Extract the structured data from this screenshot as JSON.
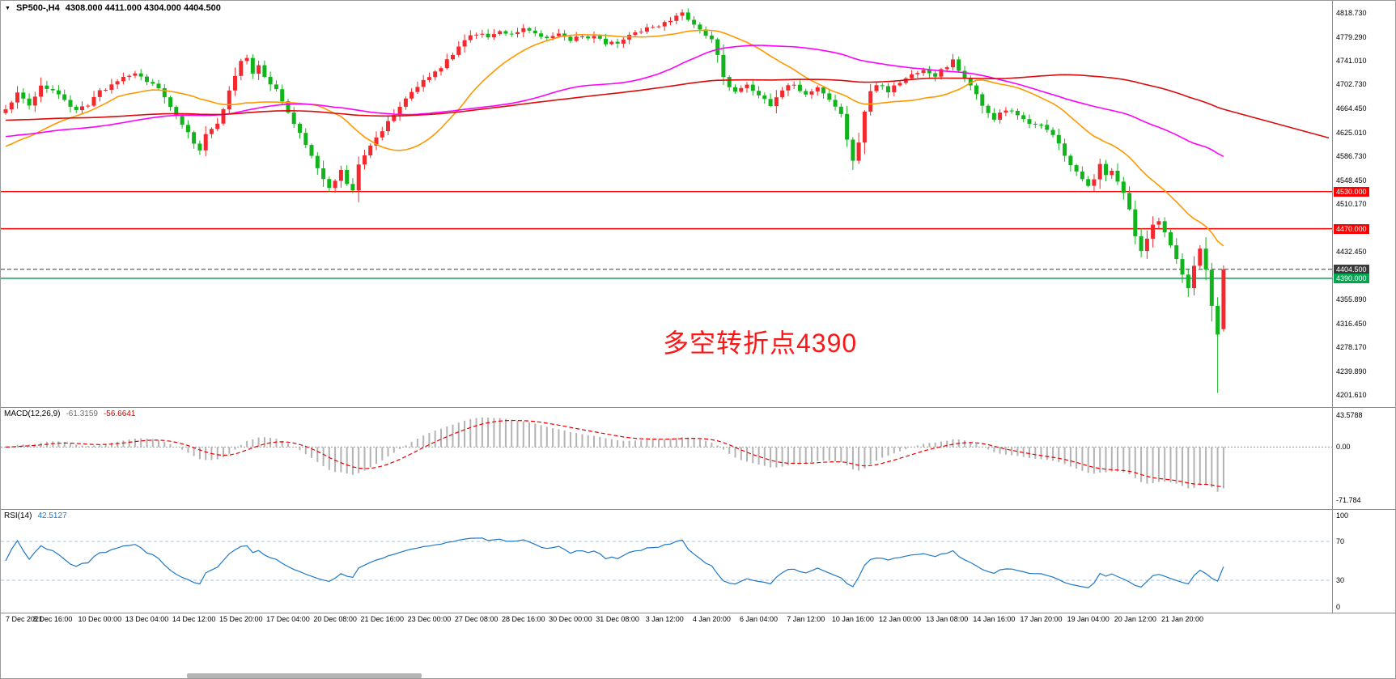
{
  "header": {
    "marker": "▼",
    "symbol": "SP500-,H4",
    "ohlc": "4308.000 4411.000 4304.000 4404.500"
  },
  "annotation": {
    "text": "多空转折点4390",
    "color": "#fb1717"
  },
  "chart_data": {
    "type": "candlestick",
    "symbol": "SP500-",
    "timeframe": "H4",
    "title": "SP500-,H4",
    "current_bar": {
      "open": 4308.0,
      "high": 4411.0,
      "low": 4304.0,
      "close": 4404.5
    },
    "ylim": [
      4190,
      4830
    ],
    "bars_total": 208,
    "bars_per_label": 8,
    "up_color": "#f5282d",
    "down_color": "#12b41c",
    "price_axis_ticks": [
      "4818.730",
      "4779.290",
      "4741.010",
      "4702.730",
      "4664.450",
      "4625.010",
      "4586.730",
      "4548.450",
      "4510.170",
      "4432.450",
      "4355.890",
      "4316.450",
      "4278.170",
      "4239.890",
      "4201.610"
    ],
    "x_labels": [
      "7 Dec 2021",
      "8 Dec 16:00",
      "10 Dec 00:00",
      "13 Dec 04:00",
      "14 Dec 12:00",
      "15 Dec 20:00",
      "17 Dec 04:00",
      "20 Dec 08:00",
      "21 Dec 16:00",
      "23 Dec 00:00",
      "27 Dec 08:00",
      "28 Dec 16:00",
      "30 Dec 00:00",
      "31 Dec 08:00",
      "3 Jan 12:00",
      "4 Jan 20:00",
      "6 Jan 04:00",
      "7 Jan 12:00",
      "10 Jan 16:00",
      "12 Jan 00:00",
      "13 Jan 08:00",
      "14 Jan 16:00",
      "17 Jan 20:00",
      "19 Jan 04:00",
      "20 Jan 12:00",
      "21 Jan 20:00"
    ],
    "close_anchors": [
      [
        0,
        4662
      ],
      [
        2,
        4688
      ],
      [
        4,
        4672
      ],
      [
        6,
        4700
      ],
      [
        8,
        4694
      ],
      [
        10,
        4678
      ],
      [
        12,
        4658
      ],
      [
        14,
        4672
      ],
      [
        16,
        4692
      ],
      [
        18,
        4702
      ],
      [
        20,
        4712
      ],
      [
        22,
        4718
      ],
      [
        24,
        4708
      ],
      [
        26,
        4694
      ],
      [
        28,
        4668
      ],
      [
        30,
        4638
      ],
      [
        32,
        4608
      ],
      [
        33,
        4594
      ],
      [
        34,
        4622
      ],
      [
        36,
        4642
      ],
      [
        38,
        4690
      ],
      [
        40,
        4742
      ],
      [
        41,
        4746
      ],
      [
        42,
        4722
      ],
      [
        43,
        4736
      ],
      [
        44,
        4712
      ],
      [
        46,
        4692
      ],
      [
        48,
        4660
      ],
      [
        50,
        4622
      ],
      [
        52,
        4586
      ],
      [
        54,
        4550
      ],
      [
        55,
        4536
      ],
      [
        56,
        4546
      ],
      [
        57,
        4562
      ],
      [
        58,
        4542
      ],
      [
        59,
        4535
      ],
      [
        60,
        4572
      ],
      [
        62,
        4602
      ],
      [
        64,
        4628
      ],
      [
        66,
        4656
      ],
      [
        68,
        4682
      ],
      [
        70,
        4702
      ],
      [
        72,
        4716
      ],
      [
        74,
        4732
      ],
      [
        76,
        4752
      ],
      [
        78,
        4772
      ],
      [
        80,
        4786
      ],
      [
        82,
        4780
      ],
      [
        84,
        4790
      ],
      [
        86,
        4784
      ],
      [
        88,
        4793
      ],
      [
        90,
        4786
      ],
      [
        92,
        4776
      ],
      [
        94,
        4783
      ],
      [
        96,
        4773
      ],
      [
        98,
        4781
      ],
      [
        100,
        4778
      ],
      [
        102,
        4770
      ],
      [
        104,
        4768
      ],
      [
        106,
        4781
      ],
      [
        108,
        4791
      ],
      [
        110,
        4797
      ],
      [
        112,
        4801
      ],
      [
        114,
        4813
      ],
      [
        115,
        4816
      ],
      [
        116,
        4806
      ],
      [
        118,
        4791
      ],
      [
        120,
        4776
      ],
      [
        121,
        4752
      ],
      [
        122,
        4712
      ],
      [
        124,
        4690
      ],
      [
        126,
        4701
      ],
      [
        128,
        4686
      ],
      [
        130,
        4671
      ],
      [
        132,
        4696
      ],
      [
        134,
        4701
      ],
      [
        136,
        4689
      ],
      [
        138,
        4696
      ],
      [
        140,
        4681
      ],
      [
        142,
        4652
      ],
      [
        143,
        4612
      ],
      [
        144,
        4582
      ],
      [
        145,
        4612
      ],
      [
        146,
        4662
      ],
      [
        147,
        4692
      ],
      [
        148,
        4701
      ],
      [
        150,
        4693
      ],
      [
        152,
        4706
      ],
      [
        154,
        4716
      ],
      [
        156,
        4723
      ],
      [
        158,
        4719
      ],
      [
        160,
        4731
      ],
      [
        161,
        4741
      ],
      [
        162,
        4723
      ],
      [
        164,
        4701
      ],
      [
        166,
        4671
      ],
      [
        168,
        4646
      ],
      [
        170,
        4663
      ],
      [
        172,
        4651
      ],
      [
        174,
        4636
      ],
      [
        176,
        4641
      ],
      [
        178,
        4621
      ],
      [
        180,
        4591
      ],
      [
        182,
        4561
      ],
      [
        184,
        4536
      ],
      [
        185,
        4549
      ],
      [
        186,
        4571
      ],
      [
        187,
        4556
      ],
      [
        188,
        4561
      ],
      [
        189,
        4546
      ],
      [
        190,
        4531
      ],
      [
        191,
        4501
      ],
      [
        192,
        4461
      ],
      [
        193,
        4436
      ],
      [
        194,
        4456
      ],
      [
        195,
        4476
      ],
      [
        196,
        4481
      ],
      [
        197,
        4461
      ],
      [
        198,
        4446
      ],
      [
        199,
        4421
      ],
      [
        200,
        4396
      ],
      [
        201,
        4371
      ],
      [
        202,
        4411
      ],
      [
        203,
        4441
      ],
      [
        204,
        4401
      ],
      [
        205,
        4348
      ],
      [
        206,
        4301
      ],
      [
        207,
        4404.5
      ]
    ],
    "overrides": {
      "55": {
        "low": 4529
      },
      "114": {
        "high": 4818.5
      },
      "144": {
        "low": 4565
      },
      "206": {
        "low": 4205
      },
      "207": {
        "open": 4308,
        "high": 4411,
        "low": 4304,
        "close": 4404.5
      }
    },
    "moving_averages": [
      {
        "name": "ma-fast",
        "period": 20,
        "color": "#ff9800",
        "seed": 4600
      },
      {
        "name": "ma-mid",
        "period": 60,
        "color": "#ff00ff",
        "seed": 4618
      },
      {
        "name": "ma-slow",
        "period": 120,
        "color": "#dd0a0a",
        "seed": 4645,
        "extend_to_axis": true
      }
    ],
    "hlines": [
      {
        "price": 4530.0,
        "label": "4530.000",
        "color": "#ff0000",
        "style": "solid",
        "role": "resistance-upper"
      },
      {
        "price": 4470.0,
        "label": "4470.000",
        "color": "#ff0000",
        "style": "solid",
        "role": "resistance-lower"
      },
      {
        "price": 4404.5,
        "label": "4404.500",
        "color": "#3a3a3a",
        "style": "dash",
        "role": "current-price"
      },
      {
        "price": 4390.0,
        "label": "4390.000",
        "color": "#00a651",
        "style": "solid",
        "role": "support"
      }
    ],
    "indicators": {
      "macd": {
        "label": "MACD(12,26,9)",
        "value_main": "-61.3159",
        "value_signal": "-56.6641",
        "fast": 12,
        "slow": 26,
        "signal": 9,
        "ylim": [
          -80,
          50
        ],
        "axis_ticks": [
          "43.5788",
          "0.00",
          "-71.784"
        ],
        "hist_color": "#b3b3b3",
        "signal_color": "#e60000"
      },
      "rsi": {
        "label": "RSI(14)",
        "value": "42.5127",
        "period": 14,
        "ylim": [
          0,
          100
        ],
        "levels": [
          70,
          30
        ],
        "axis_ticks": [
          "100",
          "70",
          "30",
          "0"
        ],
        "color": "#1e78c8"
      }
    }
  }
}
